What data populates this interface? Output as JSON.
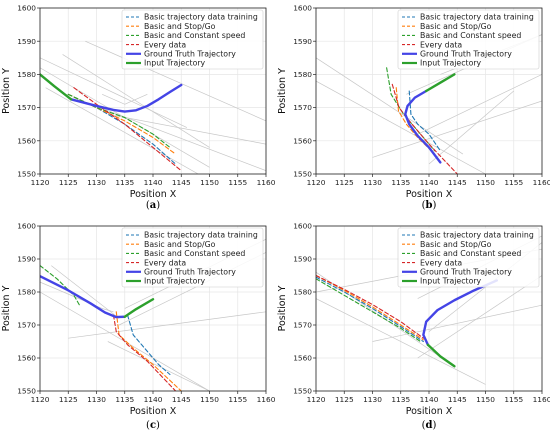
{
  "chart_data": [
    {
      "panel": "(a)",
      "type": "line",
      "xlabel": "Position X",
      "ylabel": "Position Y",
      "xlim": [
        1120,
        1160
      ],
      "ylim": [
        1550,
        1600
      ],
      "xticks": [
        1120,
        1125,
        1130,
        1135,
        1140,
        1145,
        1150,
        1155,
        1160
      ],
      "yticks": [
        1550,
        1560,
        1570,
        1580,
        1590,
        1600
      ],
      "grid": true,
      "legend_position": "top-right",
      "road": [
        {
          "x": [
            1120,
            1150
          ],
          "y": [
            1582,
            1552
          ]
        },
        {
          "x": [
            1121,
            1148
          ],
          "y": [
            1576,
            1550
          ]
        },
        {
          "x": [
            1126,
            1160
          ],
          "y": [
            1573,
            1551
          ]
        },
        {
          "x": [
            1124,
            1150
          ],
          "y": [
            1586,
            1558
          ]
        },
        {
          "x": [
            1120,
            1146
          ],
          "y": [
            1585,
            1564
          ]
        },
        {
          "x": [
            1132,
            1160
          ],
          "y": [
            1568,
            1559
          ]
        },
        {
          "x": [
            1128,
            1160
          ],
          "y": [
            1590,
            1566
          ]
        },
        {
          "x": [
            1131,
            1135,
            1139
          ],
          "y": [
            1574,
            1571,
            1574
          ]
        }
      ],
      "series": [
        {
          "name": "Basic trajectory data training",
          "color": "#1f77b4",
          "style": "dashed",
          "x": [
            1125,
            1130,
            1135,
            1140,
            1144
          ],
          "y": [
            1574,
            1570,
            1565,
            1559,
            1553
          ]
        },
        {
          "name": "Basic and Stop/Go",
          "color": "#ff7f0e",
          "style": "dashed",
          "x": [
            1125,
            1130,
            1135,
            1140,
            1144
          ],
          "y": [
            1574,
            1570,
            1566,
            1561,
            1556
          ]
        },
        {
          "name": "Basic and Constant speed",
          "color": "#2ca02c",
          "style": "dashed",
          "x": [
            1125,
            1130,
            1135,
            1140,
            1143
          ],
          "y": [
            1574,
            1570,
            1567,
            1562,
            1558
          ]
        },
        {
          "name": "Every data",
          "color": "#d62728",
          "style": "dashed",
          "x": [
            1126,
            1130,
            1135,
            1140,
            1145
          ],
          "y": [
            1576,
            1571,
            1565,
            1558,
            1551
          ]
        },
        {
          "name": "Ground Truth Trajectory",
          "color": "#4444e6",
          "style": "solid-thick",
          "x": [
            1125.5,
            1130,
            1133,
            1135,
            1137,
            1139,
            1141,
            1143,
            1145
          ],
          "y": [
            1572.5,
            1570.5,
            1569.3,
            1568.8,
            1569.2,
            1570.5,
            1572.5,
            1574.7,
            1576.8
          ]
        },
        {
          "name": "Input Trajectory",
          "color": "#2ca02c",
          "style": "solid-thick",
          "x": [
            1120,
            1122.5,
            1125.5
          ],
          "y": [
            1580,
            1576.5,
            1572.5
          ]
        }
      ]
    },
    {
      "panel": "(b)",
      "type": "line",
      "xlabel": "Position X",
      "ylabel": "Position Y",
      "xlim": [
        1120,
        1160
      ],
      "ylim": [
        1550,
        1600
      ],
      "xticks": [
        1120,
        1125,
        1130,
        1135,
        1140,
        1145,
        1150,
        1155,
        1160
      ],
      "yticks": [
        1550,
        1560,
        1570,
        1580,
        1590,
        1600
      ],
      "grid": true,
      "legend_position": "top-right",
      "road": [
        {
          "x": [
            1120,
            1146
          ],
          "y": [
            1585,
            1556
          ]
        },
        {
          "x": [
            1120,
            1150
          ],
          "y": [
            1578,
            1550
          ]
        },
        {
          "x": [
            1138,
            1160
          ],
          "y": [
            1562,
            1580
          ]
        },
        {
          "x": [
            1136,
            1160
          ],
          "y": [
            1574,
            1592
          ]
        },
        {
          "x": [
            1140,
            1155
          ],
          "y": [
            1553,
            1575
          ]
        },
        {
          "x": [
            1130,
            1160
          ],
          "y": [
            1555,
            1572
          ]
        },
        {
          "x": [
            1142,
            1160
          ],
          "y": [
            1580,
            1592
          ]
        }
      ],
      "series": [
        {
          "name": "Basic trajectory data training",
          "color": "#1f77b4",
          "style": "dashed",
          "x": [
            1136.5,
            1136.8,
            1138,
            1140,
            1142
          ],
          "y": [
            1575,
            1568,
            1565,
            1562,
            1557
          ]
        },
        {
          "name": "Basic and Stop/Go",
          "color": "#ff7f0e",
          "style": "dashed",
          "x": [
            1134.2,
            1134.6,
            1136,
            1138,
            1141
          ],
          "y": [
            1576,
            1569,
            1565,
            1561,
            1556
          ]
        },
        {
          "name": "Basic and Constant speed",
          "color": "#2ca02c",
          "style": "dashed",
          "x": [
            1132.5,
            1133.3,
            1135.5,
            1138,
            1141
          ],
          "y": [
            1582,
            1574,
            1568,
            1563,
            1557
          ]
        },
        {
          "name": "Every data",
          "color": "#d62728",
          "style": "dashed",
          "x": [
            1133.5,
            1134.7,
            1136.5,
            1140,
            1145
          ],
          "y": [
            1577,
            1570,
            1566,
            1559,
            1550
          ]
        },
        {
          "name": "Ground Truth Trajectory",
          "color": "#4444e6",
          "style": "solid-thick",
          "x": [
            1139.5,
            1137.5,
            1136.2,
            1135.8,
            1136.5,
            1138,
            1140,
            1142
          ],
          "y": [
            1575,
            1573,
            1570.5,
            1568,
            1565,
            1561.5,
            1558,
            1553.5
          ]
        },
        {
          "name": "Input Trajectory",
          "color": "#2ca02c",
          "style": "solid-thick",
          "x": [
            1139.5,
            1142,
            1144.5
          ],
          "y": [
            1575,
            1577.5,
            1580
          ]
        }
      ]
    },
    {
      "panel": "(c)",
      "type": "line",
      "xlabel": "Position X",
      "ylabel": "Position Y",
      "xlim": [
        1120,
        1160
      ],
      "ylim": [
        1550,
        1600
      ],
      "xticks": [
        1120,
        1125,
        1130,
        1135,
        1140,
        1145,
        1150,
        1155,
        1160
      ],
      "yticks": [
        1550,
        1560,
        1570,
        1580,
        1590,
        1600
      ],
      "grid": true,
      "legend_position": "top-right",
      "road": [
        {
          "x": [
            1120,
            1150
          ],
          "y": [
            1580,
            1550
          ]
        },
        {
          "x": [
            1122,
            1134
          ],
          "y": [
            1588,
            1572
          ]
        },
        {
          "x": [
            1134,
            1160
          ],
          "y": [
            1570,
            1592
          ]
        },
        {
          "x": [
            1125,
            1160
          ],
          "y": [
            1566,
            1574
          ]
        },
        {
          "x": [
            1132,
            1150
          ],
          "y": [
            1565,
            1550
          ]
        },
        {
          "x": [
            1135,
            1160
          ],
          "y": [
            1575,
            1596
          ]
        },
        {
          "x": [
            1120,
            1131,
            1133
          ],
          "y": [
            1583,
            1575,
            1574
          ]
        }
      ],
      "series": [
        {
          "name": "Basic trajectory data training",
          "color": "#1f77b4",
          "style": "dashed",
          "x": [
            1135.5,
            1136.5,
            1139,
            1141,
            1143
          ],
          "y": [
            1573,
            1567,
            1562,
            1558,
            1555
          ]
        },
        {
          "name": "Basic and Stop/Go",
          "color": "#ff7f0e",
          "style": "dashed",
          "x": [
            1133.5,
            1134,
            1136.5,
            1140,
            1145
          ],
          "y": [
            1574,
            1567,
            1563,
            1558,
            1550
          ]
        },
        {
          "name": "Basic and Constant speed",
          "color": "#2ca02c",
          "style": "dashed",
          "x": [
            1120,
            1123,
            1126,
            1127
          ],
          "y": [
            1588,
            1584,
            1579,
            1576
          ]
        },
        {
          "name": "Every data",
          "color": "#d62728",
          "style": "dashed",
          "x": [
            1133,
            1133.5,
            1135.5,
            1139,
            1144
          ],
          "y": [
            1573,
            1568,
            1564,
            1559,
            1550
          ]
        },
        {
          "name": "Ground Truth Trajectory",
          "color": "#4444e6",
          "style": "solid-thick",
          "x": [
            1120,
            1125,
            1129,
            1131.5,
            1133.5,
            1135
          ],
          "y": [
            1584.8,
            1580.5,
            1576.5,
            1573.8,
            1572.4,
            1572.5
          ]
        },
        {
          "name": "Input Trajectory",
          "color": "#2ca02c",
          "style": "solid-thick",
          "x": [
            1135,
            1137,
            1140
          ],
          "y": [
            1572.5,
            1574.8,
            1577.8
          ]
        }
      ]
    },
    {
      "panel": "(d)",
      "type": "line",
      "xlabel": "Position X",
      "ylabel": "Position Y",
      "xlim": [
        1120,
        1160
      ],
      "ylim": [
        1550,
        1600
      ],
      "xticks": [
        1120,
        1125,
        1130,
        1135,
        1140,
        1145,
        1150,
        1155,
        1160
      ],
      "yticks": [
        1550,
        1560,
        1570,
        1580,
        1590,
        1600
      ],
      "grid": true,
      "legend_position": "top-right",
      "road": [
        {
          "x": [
            1120,
            1144
          ],
          "y": [
            1586,
            1558
          ]
        },
        {
          "x": [
            1120,
            1150
          ],
          "y": [
            1578,
            1552
          ]
        },
        {
          "x": [
            1140,
            1160
          ],
          "y": [
            1568,
            1595
          ]
        },
        {
          "x": [
            1138,
            1160
          ],
          "y": [
            1578,
            1597
          ]
        },
        {
          "x": [
            1130,
            1160
          ],
          "y": [
            1565,
            1576
          ]
        },
        {
          "x": [
            1138,
            1160
          ],
          "y": [
            1560,
            1585
          ]
        },
        {
          "x": [
            1120,
            1160
          ],
          "y": [
            1580,
            1593
          ]
        }
      ],
      "series": [
        {
          "name": "Basic trajectory data training",
          "color": "#1f77b4",
          "style": "dashed",
          "x": [
            1120,
            1125,
            1130,
            1135,
            1139
          ],
          "y": [
            1584.5,
            1580,
            1575,
            1569.5,
            1565
          ]
        },
        {
          "name": "Basic and Stop/Go",
          "color": "#ff7f0e",
          "style": "dashed",
          "x": [
            1120,
            1125,
            1130,
            1135,
            1139
          ],
          "y": [
            1585,
            1580.5,
            1575.5,
            1570,
            1565.5
          ]
        },
        {
          "name": "Basic and Constant speed",
          "color": "#2ca02c",
          "style": "dashed",
          "x": [
            1120,
            1125,
            1130,
            1135,
            1138.5
          ],
          "y": [
            1584,
            1579,
            1574,
            1569,
            1565
          ]
        },
        {
          "name": "Every data",
          "color": "#d62728",
          "style": "dashed",
          "x": [
            1120,
            1125,
            1130,
            1135,
            1139
          ],
          "y": [
            1585,
            1580.8,
            1576.2,
            1571,
            1566
          ]
        },
        {
          "name": "Ground Truth Trajectory",
          "color": "#4444e6",
          "style": "solid-thick",
          "x": [
            1139.8,
            1139,
            1139.5,
            1141.5,
            1144.5,
            1148,
            1152
          ],
          "y": [
            1564,
            1567,
            1571,
            1574.5,
            1577.5,
            1580.5,
            1583.5
          ]
        },
        {
          "name": "Input Trajectory",
          "color": "#2ca02c",
          "style": "solid-thick",
          "x": [
            1139.8,
            1142,
            1144.5
          ],
          "y": [
            1564,
            1560.5,
            1557.5
          ]
        }
      ]
    }
  ]
}
